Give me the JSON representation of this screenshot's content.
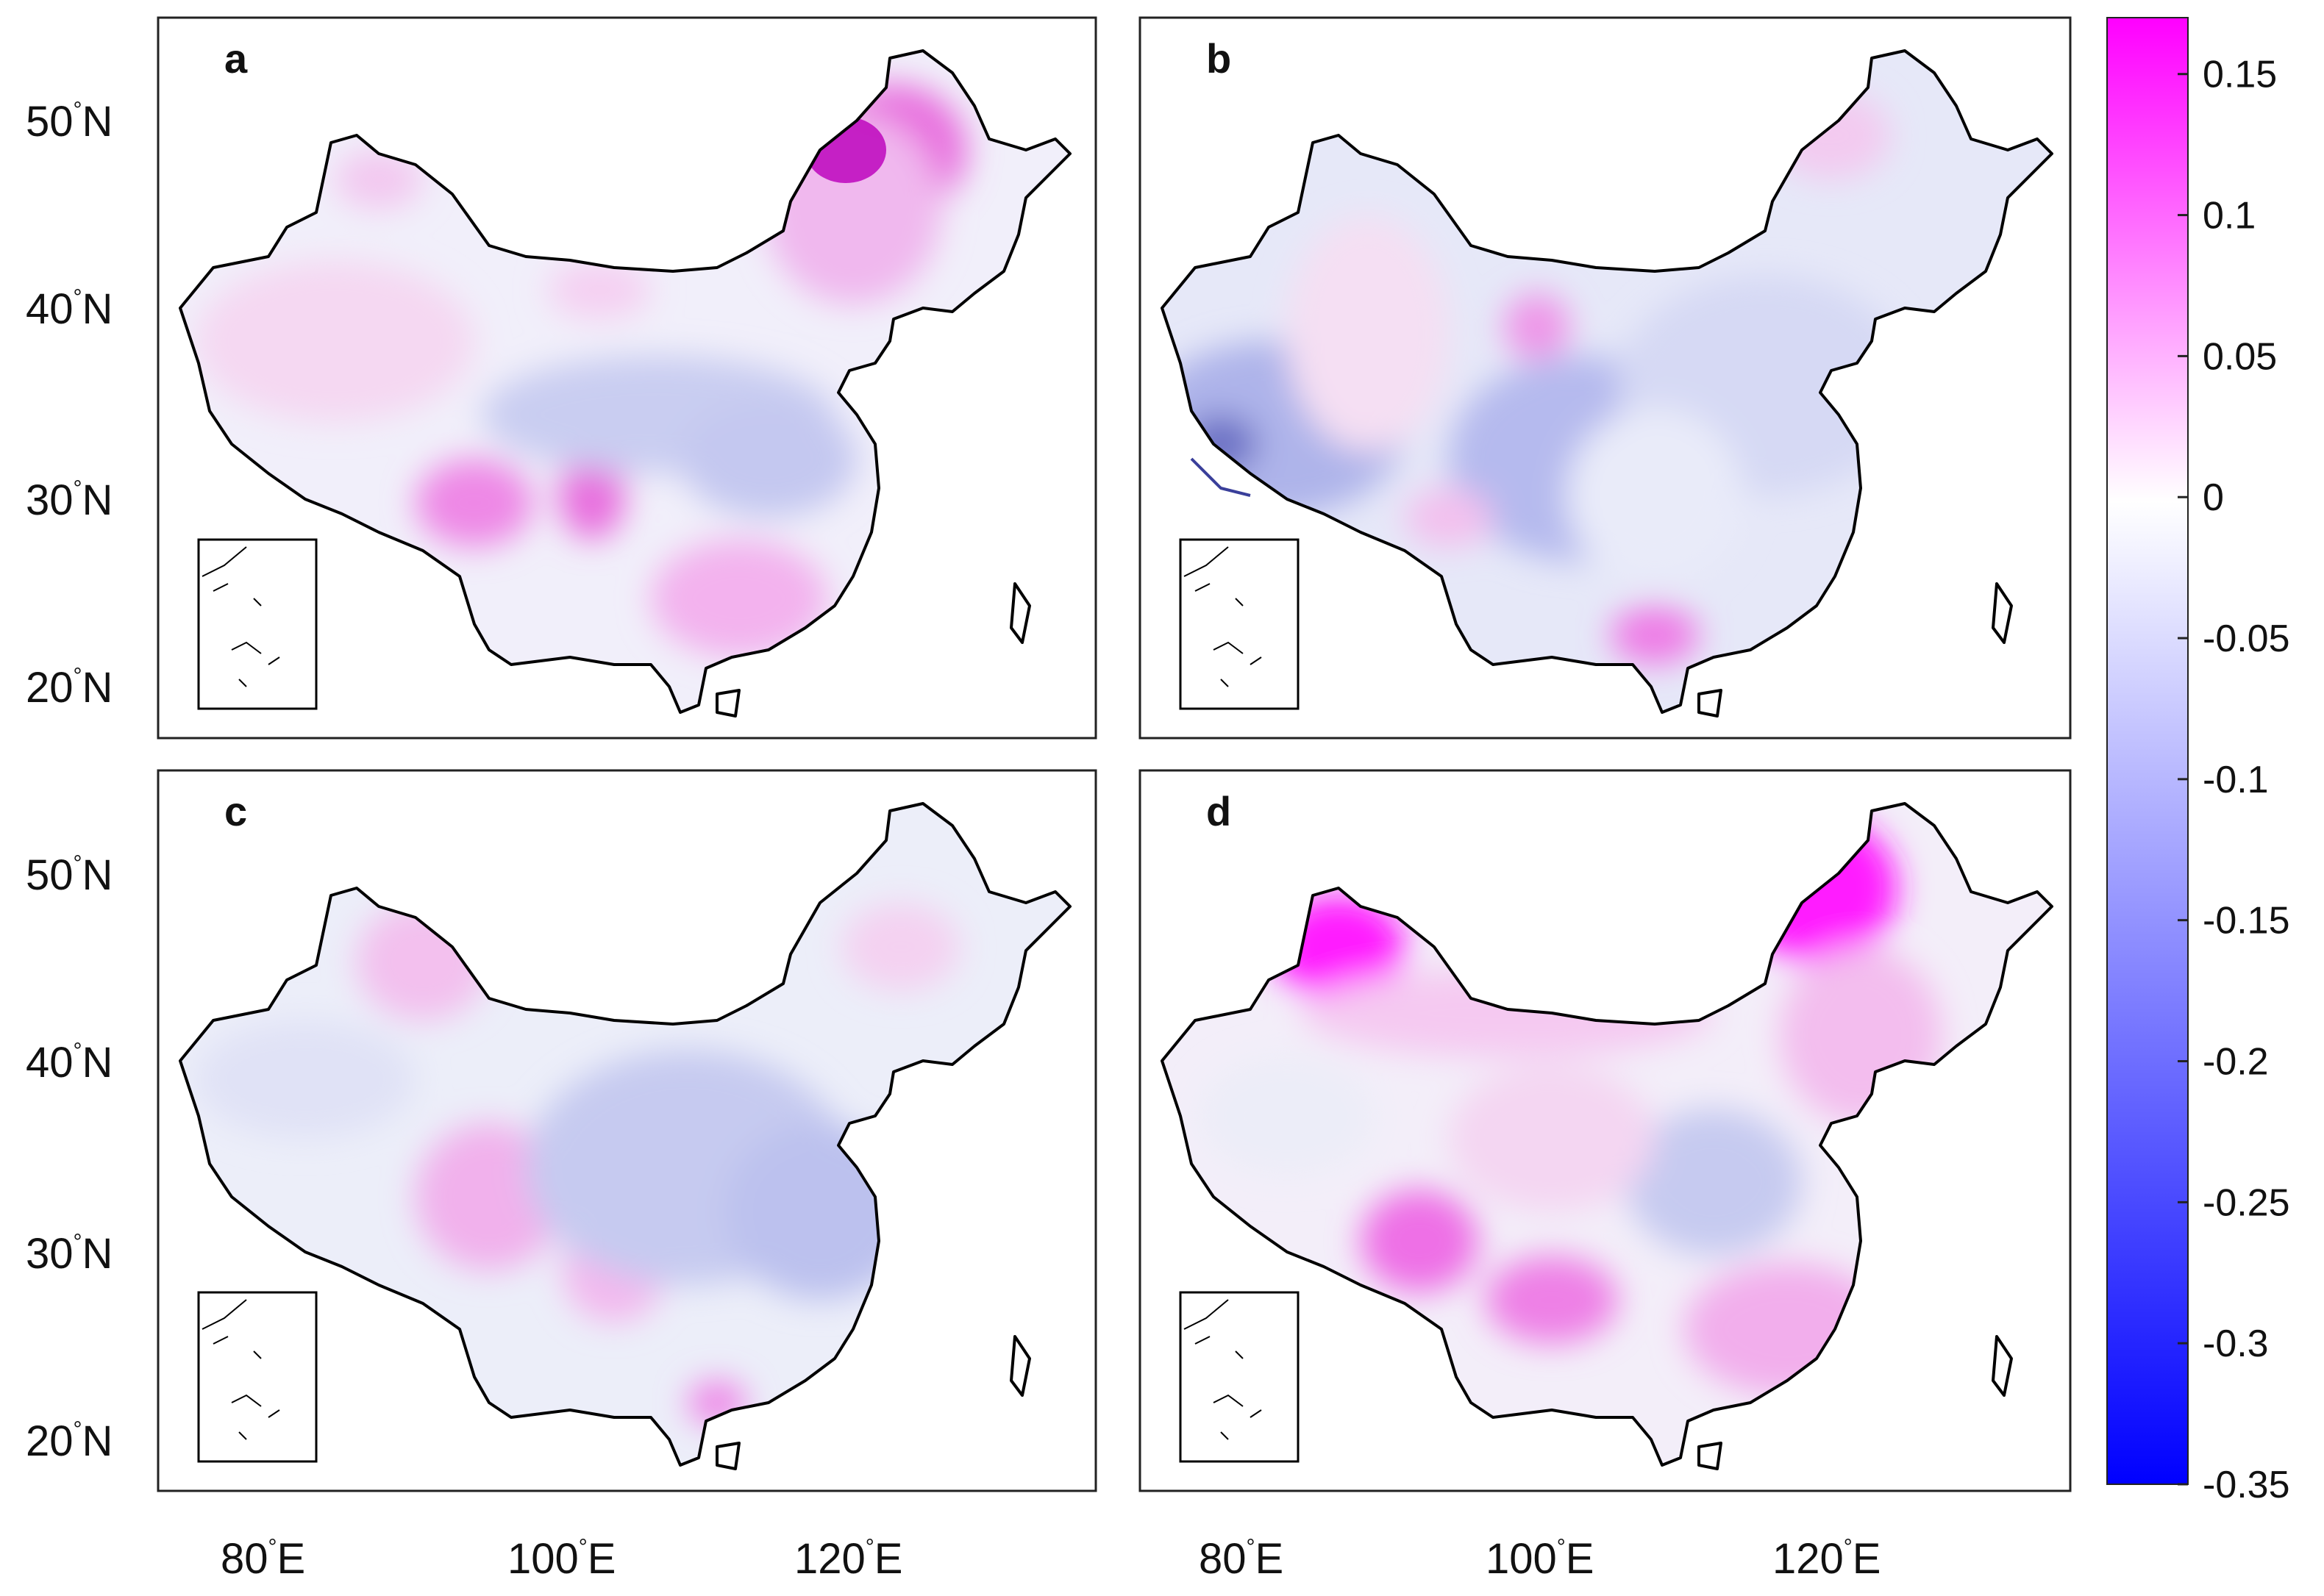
{
  "panels": [
    {
      "letter": "a",
      "bias": "mixed"
    },
    {
      "letter": "b",
      "bias": "cool"
    },
    {
      "letter": "c",
      "bias": "cool-light"
    },
    {
      "letter": "d",
      "bias": "warm"
    }
  ],
  "y_axis": [
    {
      "value": "50",
      "hemi": "N"
    },
    {
      "value": "40",
      "hemi": "N"
    },
    {
      "value": "30",
      "hemi": "N"
    },
    {
      "value": "20",
      "hemi": "N"
    }
  ],
  "x_axis": [
    {
      "value": "80",
      "hemi": "E"
    },
    {
      "value": "100",
      "hemi": "E"
    },
    {
      "value": "120",
      "hemi": "E"
    }
  ],
  "degree_symbol": "°",
  "colorbar": {
    "range": [
      -0.35,
      0.17
    ],
    "ticks": [
      "0.15",
      "0.1",
      "0.05",
      "0",
      "-0.05",
      "-0.1",
      "-0.15",
      "-0.2",
      "-0.25",
      "-0.3",
      "-0.35"
    ],
    "colors": {
      "max": "#ff00ff",
      "mid": "#ffffff",
      "min": "#0000ff",
      "land_outline": "#000000"
    }
  }
}
